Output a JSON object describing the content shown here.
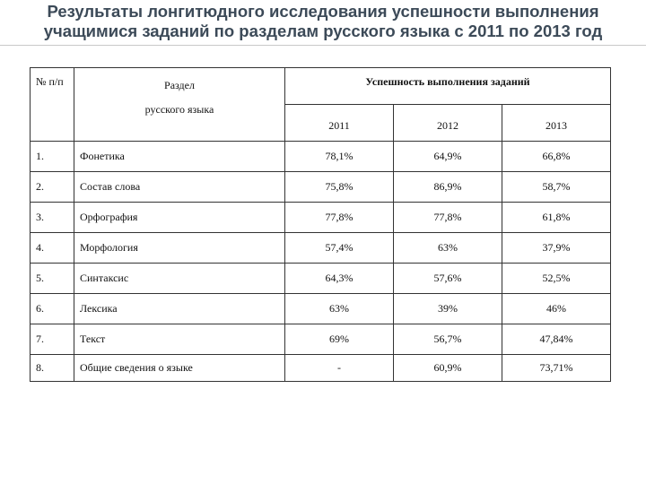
{
  "header": {
    "title": "Результаты лонгитюдного исследования успешности выполнения учащимися заданий по разделам русского языка с 2011 по 2013 год"
  },
  "table": {
    "number_header": "№ п/п",
    "section_header": [
      "Раздел",
      "русского языка"
    ],
    "success_header": "Успешность выполнения заданий",
    "years": [
      "2011",
      "2012",
      "2013"
    ],
    "rows": [
      [
        "1.",
        "Фонетика",
        "78,1%",
        "64,9%",
        "66,8%"
      ],
      [
        "2.",
        "Состав слова",
        "75,8%",
        "86,9%",
        "58,7%"
      ],
      [
        "3.",
        "Орфография",
        "77,8%",
        "77,8%",
        "61,8%"
      ],
      [
        "4.",
        "Морфология",
        "57,4%",
        "63%",
        "37,9%"
      ],
      [
        "5.",
        "Синтаксис",
        "64,3%",
        "57,6%",
        "52,5%"
      ],
      [
        "6.",
        "Лексика",
        "63%",
        "39%",
        "46%"
      ],
      [
        "7.",
        "Текст",
        "69%",
        "56,7%",
        "47,84%"
      ],
      [
        "8.",
        "Общие сведения о языке",
        "-",
        "60,9%",
        "73,71%"
      ]
    ]
  }
}
